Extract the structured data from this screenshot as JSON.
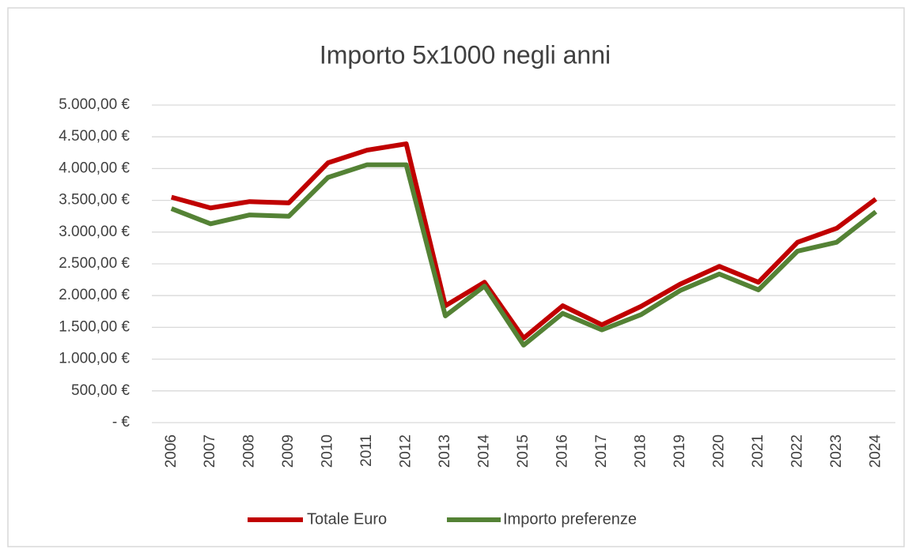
{
  "chart_data": {
    "type": "line",
    "title": "Importo 5x1000 negli anni",
    "categories": [
      "2006",
      "2007",
      "2008",
      "2009",
      "2010",
      "2011",
      "2012",
      "2013",
      "2014",
      "2015",
      "2016",
      "2017",
      "2018",
      "2019",
      "2020",
      "2021",
      "2022",
      "2023",
      "2024"
    ],
    "series": [
      {
        "name": "Totale Euro",
        "color": "#c00000",
        "values": [
          3550,
          3380,
          3480,
          3460,
          4090,
          4290,
          4390,
          1840,
          2210,
          1330,
          1840,
          1540,
          1830,
          2180,
          2460,
          2210,
          2840,
          3060,
          3520
        ]
      },
      {
        "name": "Importo preferenze",
        "color": "#548235",
        "values": [
          3370,
          3130,
          3270,
          3250,
          3860,
          4060,
          4060,
          1680,
          2150,
          1220,
          1720,
          1460,
          1700,
          2080,
          2340,
          2090,
          2700,
          2840,
          3320
        ]
      }
    ],
    "ylim": [
      0,
      5000
    ],
    "yticks": [
      {
        "value": 0,
        "label": "-  €"
      },
      {
        "value": 500,
        "label": "500,00 €"
      },
      {
        "value": 1000,
        "label": "1.000,00 €"
      },
      {
        "value": 1500,
        "label": "1.500,00 €"
      },
      {
        "value": 2000,
        "label": "2.000,00 €"
      },
      {
        "value": 2500,
        "label": "2.500,00 €"
      },
      {
        "value": 3000,
        "label": "3.000,00 €"
      },
      {
        "value": 3500,
        "label": "3.500,00 €"
      },
      {
        "value": 4000,
        "label": "4.000,00 €"
      },
      {
        "value": 4500,
        "label": "4.500,00 €"
      },
      {
        "value": 5000,
        "label": "5.000,00 €"
      }
    ],
    "grid": true,
    "legend": "bottom"
  }
}
